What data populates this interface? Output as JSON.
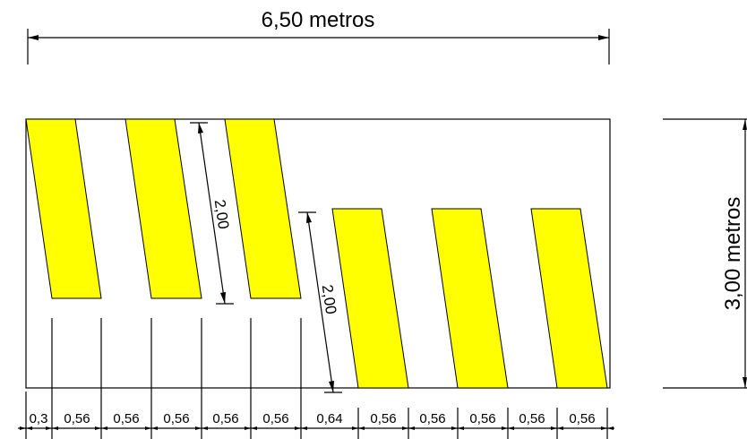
{
  "drawing": {
    "width_label": "6,50 metros",
    "height_label": "3,00 metros",
    "stripe_color": "#ffff00",
    "upper_stripe_length_label": "2,00",
    "lower_stripe_length_label": "2,00",
    "bottom_spacings": [
      "0,3",
      "0,56",
      "0,56",
      "0,56",
      "0,56",
      "0,56",
      "0,64",
      "0,56",
      "0,56",
      "0,56",
      "0,56",
      "0,56"
    ]
  }
}
